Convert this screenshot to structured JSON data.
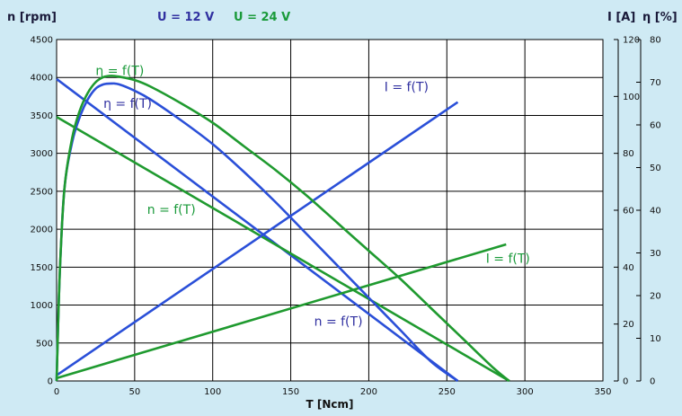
{
  "chart_data": {
    "type": "line",
    "title": "",
    "header": {
      "left_axis_label": "n [rpm]",
      "right_axis_label_current": "I [A]",
      "right_axis_label_efficiency": "η [%]",
      "legend": [
        {
          "label": "U = 12 V",
          "color": "#3030a0"
        },
        {
          "label": "U = 24 V",
          "color": "#1a9a3a"
        }
      ]
    },
    "xlabel": "T [Ncm]",
    "xlim": [
      0,
      350
    ],
    "x_ticks": [
      0,
      50,
      100,
      150,
      200,
      250,
      300,
      350
    ],
    "y_left": {
      "lim": [
        0,
        4500
      ],
      "ticks": [
        0,
        500,
        1000,
        1500,
        2000,
        2500,
        3000,
        3500,
        4000,
        4500
      ]
    },
    "y_right_current": {
      "lim": [
        0,
        120
      ],
      "ticks": [
        0,
        20,
        40,
        60,
        80,
        100,
        120
      ]
    },
    "y_right_efficiency": {
      "lim": [
        0,
        80
      ],
      "ticks": [
        0,
        10,
        20,
        30,
        40,
        50,
        60,
        70,
        80
      ]
    },
    "grid": true,
    "colors": {
      "u12": "#2a4fd8",
      "u24": "#1f9a2f",
      "background": "#cfeaf4"
    },
    "series": [
      {
        "voltage": "U = 12 V",
        "kind": "speed",
        "label": "n = f(T)",
        "axis": "rpm",
        "x": [
          0,
          257
        ],
        "y": [
          3980,
          0
        ]
      },
      {
        "voltage": "U = 24 V",
        "kind": "speed",
        "label": "n = f(T)",
        "axis": "rpm",
        "x": [
          0,
          290
        ],
        "y": [
          3480,
          0
        ]
      },
      {
        "voltage": "U = 12 V",
        "kind": "current",
        "label": "I = f(T)",
        "axis": "current",
        "x": [
          0,
          257
        ],
        "y": [
          2,
          98
        ]
      },
      {
        "voltage": "U = 24 V",
        "kind": "current",
        "label": "I = f(T)",
        "axis": "current",
        "x": [
          0,
          288
        ],
        "y": [
          1,
          48
        ]
      },
      {
        "voltage": "U = 12 V",
        "kind": "efficiency",
        "label": "η = f(T)",
        "axis": "efficiency",
        "x": [
          0,
          2,
          5,
          10,
          15,
          20,
          25,
          30,
          35,
          40,
          50,
          60,
          80,
          100,
          120,
          140,
          160,
          180,
          200,
          220,
          240,
          257
        ],
        "y": [
          0,
          25,
          45,
          56,
          62,
          66,
          68.5,
          69.5,
          69.7,
          69.5,
          68,
          66,
          61,
          55.5,
          49,
          42,
          34.5,
          27,
          19.5,
          12,
          4.5,
          0
        ]
      },
      {
        "voltage": "U = 24 V",
        "kind": "efficiency",
        "label": "η = f(T)",
        "axis": "efficiency",
        "x": [
          0,
          2,
          5,
          10,
          15,
          20,
          25,
          30,
          35,
          40,
          50,
          60,
          80,
          100,
          120,
          140,
          160,
          180,
          200,
          220,
          240,
          260,
          280,
          290
        ],
        "y": [
          0,
          25,
          45,
          57,
          63.5,
          67.5,
          70,
          71.2,
          71.5,
          71.3,
          70.5,
          69,
          65,
          60.5,
          55,
          49.5,
          43.5,
          37,
          30.5,
          24,
          17,
          10,
          3,
          0
        ]
      }
    ],
    "annotations": [
      {
        "text": "η = f(T)",
        "color": "#1a9a3a",
        "x": 25,
        "y_rpm": 4030
      },
      {
        "text": "η = f(T)",
        "color": "#3030a0",
        "x": 30,
        "y_rpm": 3600
      },
      {
        "text": "I = f(T)",
        "color": "#3030a0",
        "x": 210,
        "y_rpm": 3820
      },
      {
        "text": "n = f(T)",
        "color": "#1a9a3a",
        "x": 58,
        "y_rpm": 2200
      },
      {
        "text": "I = f(T)",
        "color": "#1a9a3a",
        "x": 275,
        "y_rpm": 1560
      },
      {
        "text": "n = f(T)",
        "color": "#3030a0",
        "x": 165,
        "y_rpm": 730
      }
    ]
  }
}
